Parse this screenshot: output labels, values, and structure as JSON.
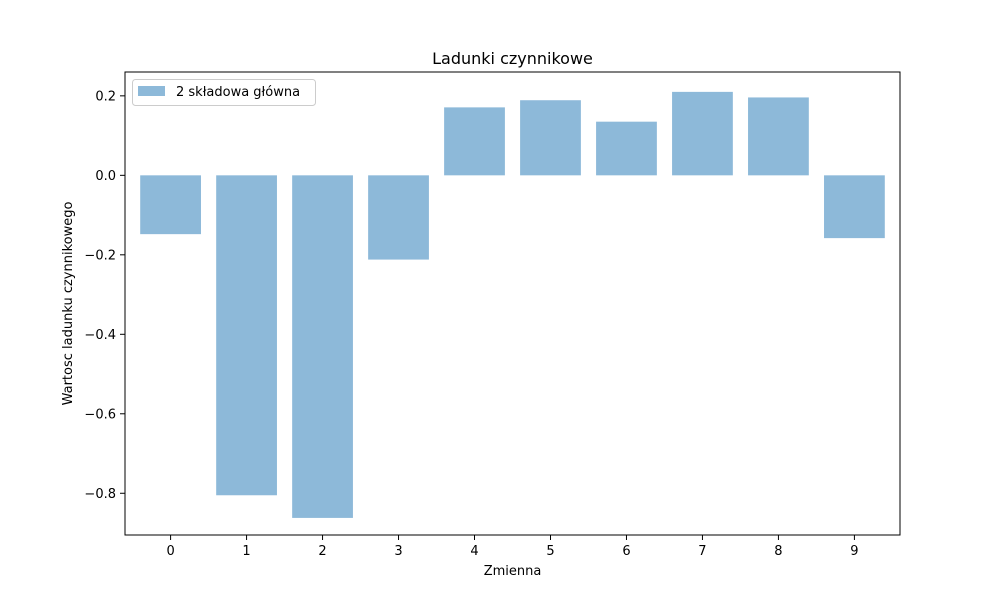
{
  "chart_data": {
    "type": "bar",
    "title": "Ladunki czynnikowe",
    "xlabel": "Zmienna",
    "ylabel": "Wartosc ladunku czynnikowego",
    "categories": [
      "0",
      "1",
      "2",
      "3",
      "4",
      "5",
      "6",
      "7",
      "8",
      "9"
    ],
    "series": [
      {
        "name": "2 składowa główna",
        "values": [
          -0.148,
          -0.805,
          -0.862,
          -0.212,
          0.171,
          0.189,
          0.135,
          0.21,
          0.196,
          -0.158
        ],
        "color": "#8db9d9"
      }
    ],
    "ylim": [
      -0.905,
      0.26
    ],
    "yticks": [
      0.2,
      0.0,
      -0.2,
      -0.4,
      -0.6,
      -0.8
    ],
    "ytick_labels": [
      "0.2",
      "0.0",
      "−0.2",
      "−0.4",
      "−0.6",
      "−0.8"
    ],
    "legend_position": "top-left",
    "grid": false
  }
}
